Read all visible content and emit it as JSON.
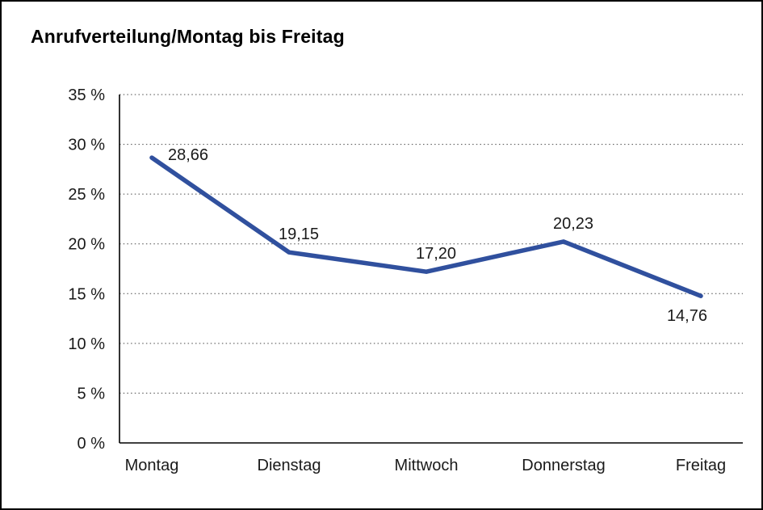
{
  "chart_data": {
    "type": "line",
    "title": "Anrufverteilung/Montag bis Freitag",
    "categories": [
      "Montag",
      "Dienstag",
      "Mittwoch",
      "Donnerstag",
      "Freitag"
    ],
    "values": [
      28.66,
      19.15,
      17.2,
      20.23,
      14.76
    ],
    "value_labels": [
      "28,66",
      "19,15",
      "17,20",
      "20,23",
      "14,76"
    ],
    "label_placement": [
      "right",
      "above",
      "above",
      "above",
      "below"
    ],
    "ylim": [
      0,
      35
    ],
    "ytick_step": 5,
    "ytick_labels": [
      "0 %",
      "5 %",
      "10 %",
      "15 %",
      "20 %",
      "25 %",
      "30 %",
      "35 %"
    ],
    "xlabel": "",
    "ylabel": "",
    "grid": "dotted-horizontal",
    "legend": "none",
    "line_color": "#30509e",
    "axis_color": "#000000",
    "grid_color": "#4a4a4a"
  }
}
